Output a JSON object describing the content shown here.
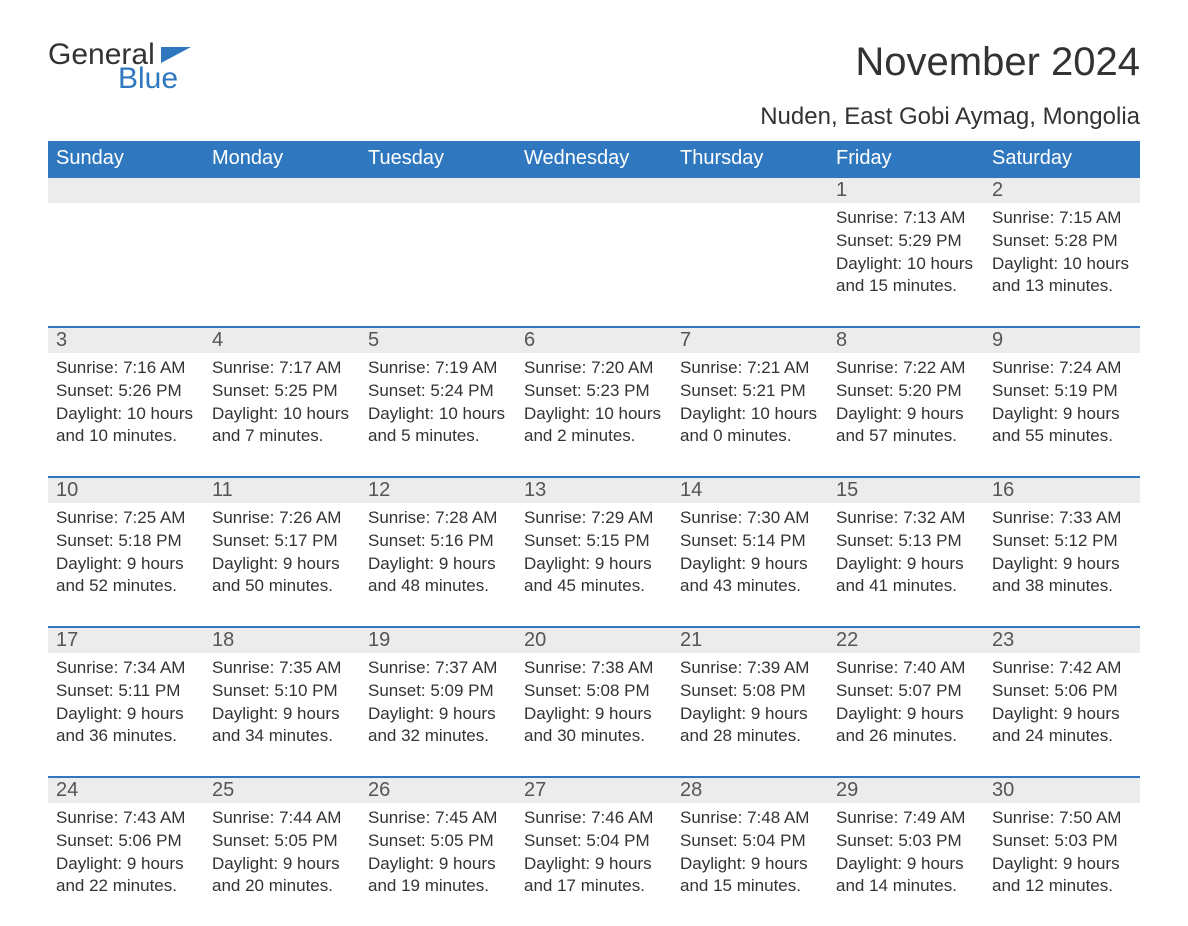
{
  "logo": {
    "word1": "General",
    "word2": "Blue"
  },
  "header": {
    "month_title": "November 2024",
    "location": "Nuden, East Gobi Aymag, Mongolia"
  },
  "style": {
    "accent_color": "#2f78bf",
    "header_text_color": "#ffffff",
    "daynum_bg": "#ececec",
    "text_color": "#333333",
    "daynum_color": "#555555",
    "background": "#ffffff",
    "head_fontsize": 20,
    "body_fontsize": 17,
    "title_fontsize": 40,
    "location_fontsize": 24,
    "columns": 7
  },
  "day_names": [
    "Sunday",
    "Monday",
    "Tuesday",
    "Wednesday",
    "Thursday",
    "Friday",
    "Saturday"
  ],
  "weeks": [
    [
      null,
      null,
      null,
      null,
      null,
      {
        "n": "1",
        "sr": "7:13 AM",
        "ss": "5:29 PM",
        "dl1": "10 hours",
        "dl2": "and 15 minutes."
      },
      {
        "n": "2",
        "sr": "7:15 AM",
        "ss": "5:28 PM",
        "dl1": "10 hours",
        "dl2": "and 13 minutes."
      }
    ],
    [
      {
        "n": "3",
        "sr": "7:16 AM",
        "ss": "5:26 PM",
        "dl1": "10 hours",
        "dl2": "and 10 minutes."
      },
      {
        "n": "4",
        "sr": "7:17 AM",
        "ss": "5:25 PM",
        "dl1": "10 hours",
        "dl2": "and 7 minutes."
      },
      {
        "n": "5",
        "sr": "7:19 AM",
        "ss": "5:24 PM",
        "dl1": "10 hours",
        "dl2": "and 5 minutes."
      },
      {
        "n": "6",
        "sr": "7:20 AM",
        "ss": "5:23 PM",
        "dl1": "10 hours",
        "dl2": "and 2 minutes."
      },
      {
        "n": "7",
        "sr": "7:21 AM",
        "ss": "5:21 PM",
        "dl1": "10 hours",
        "dl2": "and 0 minutes."
      },
      {
        "n": "8",
        "sr": "7:22 AM",
        "ss": "5:20 PM",
        "dl1": "9 hours",
        "dl2": "and 57 minutes."
      },
      {
        "n": "9",
        "sr": "7:24 AM",
        "ss": "5:19 PM",
        "dl1": "9 hours",
        "dl2": "and 55 minutes."
      }
    ],
    [
      {
        "n": "10",
        "sr": "7:25 AM",
        "ss": "5:18 PM",
        "dl1": "9 hours",
        "dl2": "and 52 minutes."
      },
      {
        "n": "11",
        "sr": "7:26 AM",
        "ss": "5:17 PM",
        "dl1": "9 hours",
        "dl2": "and 50 minutes."
      },
      {
        "n": "12",
        "sr": "7:28 AM",
        "ss": "5:16 PM",
        "dl1": "9 hours",
        "dl2": "and 48 minutes."
      },
      {
        "n": "13",
        "sr": "7:29 AM",
        "ss": "5:15 PM",
        "dl1": "9 hours",
        "dl2": "and 45 minutes."
      },
      {
        "n": "14",
        "sr": "7:30 AM",
        "ss": "5:14 PM",
        "dl1": "9 hours",
        "dl2": "and 43 minutes."
      },
      {
        "n": "15",
        "sr": "7:32 AM",
        "ss": "5:13 PM",
        "dl1": "9 hours",
        "dl2": "and 41 minutes."
      },
      {
        "n": "16",
        "sr": "7:33 AM",
        "ss": "5:12 PM",
        "dl1": "9 hours",
        "dl2": "and 38 minutes."
      }
    ],
    [
      {
        "n": "17",
        "sr": "7:34 AM",
        "ss": "5:11 PM",
        "dl1": "9 hours",
        "dl2": "and 36 minutes."
      },
      {
        "n": "18",
        "sr": "7:35 AM",
        "ss": "5:10 PM",
        "dl1": "9 hours",
        "dl2": "and 34 minutes."
      },
      {
        "n": "19",
        "sr": "7:37 AM",
        "ss": "5:09 PM",
        "dl1": "9 hours",
        "dl2": "and 32 minutes."
      },
      {
        "n": "20",
        "sr": "7:38 AM",
        "ss": "5:08 PM",
        "dl1": "9 hours",
        "dl2": "and 30 minutes."
      },
      {
        "n": "21",
        "sr": "7:39 AM",
        "ss": "5:08 PM",
        "dl1": "9 hours",
        "dl2": "and 28 minutes."
      },
      {
        "n": "22",
        "sr": "7:40 AM",
        "ss": "5:07 PM",
        "dl1": "9 hours",
        "dl2": "and 26 minutes."
      },
      {
        "n": "23",
        "sr": "7:42 AM",
        "ss": "5:06 PM",
        "dl1": "9 hours",
        "dl2": "and 24 minutes."
      }
    ],
    [
      {
        "n": "24",
        "sr": "7:43 AM",
        "ss": "5:06 PM",
        "dl1": "9 hours",
        "dl2": "and 22 minutes."
      },
      {
        "n": "25",
        "sr": "7:44 AM",
        "ss": "5:05 PM",
        "dl1": "9 hours",
        "dl2": "and 20 minutes."
      },
      {
        "n": "26",
        "sr": "7:45 AM",
        "ss": "5:05 PM",
        "dl1": "9 hours",
        "dl2": "and 19 minutes."
      },
      {
        "n": "27",
        "sr": "7:46 AM",
        "ss": "5:04 PM",
        "dl1": "9 hours",
        "dl2": "and 17 minutes."
      },
      {
        "n": "28",
        "sr": "7:48 AM",
        "ss": "5:04 PM",
        "dl1": "9 hours",
        "dl2": "and 15 minutes."
      },
      {
        "n": "29",
        "sr": "7:49 AM",
        "ss": "5:03 PM",
        "dl1": "9 hours",
        "dl2": "and 14 minutes."
      },
      {
        "n": "30",
        "sr": "7:50 AM",
        "ss": "5:03 PM",
        "dl1": "9 hours",
        "dl2": "and 12 minutes."
      }
    ]
  ],
  "labels": {
    "sunrise_prefix": "Sunrise: ",
    "sunset_prefix": "Sunset: ",
    "daylight_prefix": "Daylight: "
  }
}
